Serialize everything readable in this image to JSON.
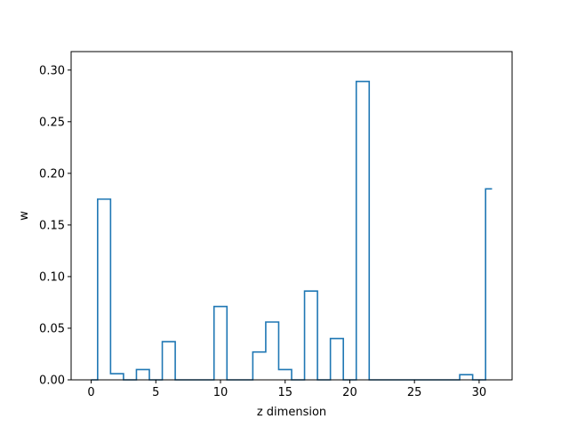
{
  "chart_data": {
    "type": "line",
    "style": "step",
    "step_where": "mid",
    "x": [
      0,
      1,
      2,
      3,
      4,
      5,
      6,
      7,
      8,
      9,
      10,
      11,
      12,
      13,
      14,
      15,
      16,
      17,
      18,
      19,
      20,
      21,
      22,
      23,
      24,
      25,
      26,
      27,
      28,
      29,
      30,
      31
    ],
    "series": [
      {
        "color": "#1f77b4",
        "values": [
          0.0,
          0.175,
          0.006,
          0.0,
          0.01,
          0.0,
          0.037,
          0.0,
          0.0,
          0.0,
          0.071,
          0.0,
          0.0,
          0.027,
          0.056,
          0.01,
          0.0,
          0.086,
          0.0,
          0.04,
          0.0,
          0.289,
          0.0,
          0.0,
          0.0,
          0.0,
          0.0,
          0.0,
          0.0,
          0.005,
          0.0,
          0.185
        ]
      }
    ],
    "title": "",
    "xlabel": "z dimension",
    "ylabel": "w",
    "xlim": [
      -1.55,
      32.55
    ],
    "ylim": [
      0,
      0.3179
    ],
    "xticks": [
      0,
      5,
      10,
      15,
      20,
      25,
      30
    ],
    "xtick_labels": [
      "0",
      "5",
      "10",
      "15",
      "20",
      "25",
      "30"
    ],
    "yticks": [
      0.0,
      0.05,
      0.1,
      0.15,
      0.2,
      0.25,
      0.3
    ],
    "ytick_labels": [
      "0.00",
      "0.05",
      "0.10",
      "0.15",
      "0.20",
      "0.25",
      "0.30"
    ],
    "grid": false,
    "legend": false
  }
}
